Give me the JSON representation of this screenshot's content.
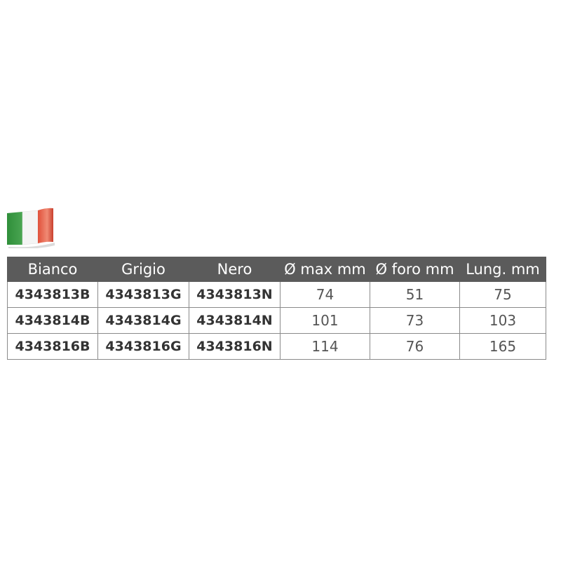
{
  "table": {
    "header": [
      "Bianco",
      "Grigio",
      "Nero",
      "Ø max mm",
      "Ø foro mm",
      "Lung. mm"
    ],
    "rows": [
      [
        "4343813B",
        "4343813G",
        "4343813N",
        74,
        51,
        75
      ],
      [
        "4343814B",
        "4343814G",
        "4343814N",
        101,
        73,
        103
      ],
      [
        "4343816B",
        "4343816G",
        "4343816N",
        114,
        76,
        165
      ]
    ]
  }
}
